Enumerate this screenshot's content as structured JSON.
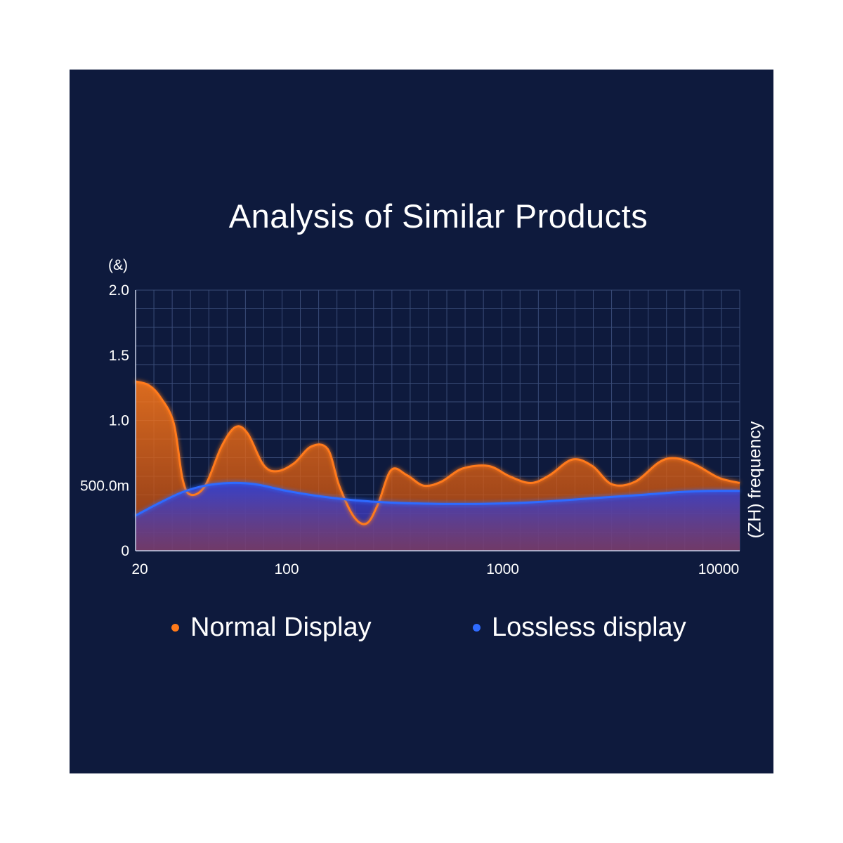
{
  "chart_data": {
    "type": "area",
    "title": "Analysis of Similar Products",
    "ylabel": "(&)",
    "xlabel": "(ZH) frequency",
    "x_scale": "log",
    "xlim": [
      20,
      12500
    ],
    "ylim": [
      0,
      2.0
    ],
    "x_ticks": [
      {
        "value": 20,
        "label": "20"
      },
      {
        "value": 100,
        "label": "100"
      },
      {
        "value": 1000,
        "label": "1000"
      },
      {
        "value": 10000,
        "label": "10000"
      }
    ],
    "y_ticks": [
      {
        "value": 0,
        "label": "0"
      },
      {
        "value": 0.5,
        "label": "500.0m"
      },
      {
        "value": 1.0,
        "label": "1.0"
      },
      {
        "value": 1.5,
        "label": "1.5"
      },
      {
        "value": 2.0,
        "label": "2.0"
      }
    ],
    "grid": true,
    "legend_position": "bottom",
    "series": [
      {
        "name": "Normal Display",
        "color": "#ff7a1a",
        "points": [
          [
            20,
            1.3
          ],
          [
            23,
            1.27
          ],
          [
            26,
            1.18
          ],
          [
            30,
            0.98
          ],
          [
            33,
            0.55
          ],
          [
            36,
            0.43
          ],
          [
            42,
            0.5
          ],
          [
            50,
            0.8
          ],
          [
            58,
            0.95
          ],
          [
            66,
            0.9
          ],
          [
            78,
            0.66
          ],
          [
            90,
            0.61
          ],
          [
            108,
            0.67
          ],
          [
            130,
            0.8
          ],
          [
            155,
            0.78
          ],
          [
            175,
            0.5
          ],
          [
            205,
            0.26
          ],
          [
            235,
            0.21
          ],
          [
            265,
            0.36
          ],
          [
            305,
            0.62
          ],
          [
            360,
            0.58
          ],
          [
            430,
            0.5
          ],
          [
            520,
            0.53
          ],
          [
            650,
            0.63
          ],
          [
            860,
            0.65
          ],
          [
            1080,
            0.57
          ],
          [
            1350,
            0.52
          ],
          [
            1650,
            0.58
          ],
          [
            2100,
            0.7
          ],
          [
            2600,
            0.65
          ],
          [
            3200,
            0.51
          ],
          [
            4100,
            0.53
          ],
          [
            5300,
            0.68
          ],
          [
            6300,
            0.71
          ],
          [
            7800,
            0.66
          ],
          [
            10000,
            0.56
          ],
          [
            12500,
            0.52
          ]
        ]
      },
      {
        "name": "Lossless display",
        "color": "#2f6bff",
        "points": [
          [
            20,
            0.27
          ],
          [
            26,
            0.37
          ],
          [
            33,
            0.45
          ],
          [
            42,
            0.5
          ],
          [
            55,
            0.52
          ],
          [
            72,
            0.51
          ],
          [
            100,
            0.46
          ],
          [
            140,
            0.42
          ],
          [
            200,
            0.39
          ],
          [
            300,
            0.37
          ],
          [
            500,
            0.36
          ],
          [
            800,
            0.36
          ],
          [
            1300,
            0.37
          ],
          [
            2000,
            0.39
          ],
          [
            3000,
            0.41
          ],
          [
            4500,
            0.43
          ],
          [
            6500,
            0.45
          ],
          [
            9000,
            0.46
          ],
          [
            12500,
            0.46
          ]
        ]
      }
    ]
  },
  "legend": [
    {
      "label": "Normal Display",
      "color": "#ff7a1a"
    },
    {
      "label": "Lossless display",
      "color": "#2f6bff"
    }
  ]
}
